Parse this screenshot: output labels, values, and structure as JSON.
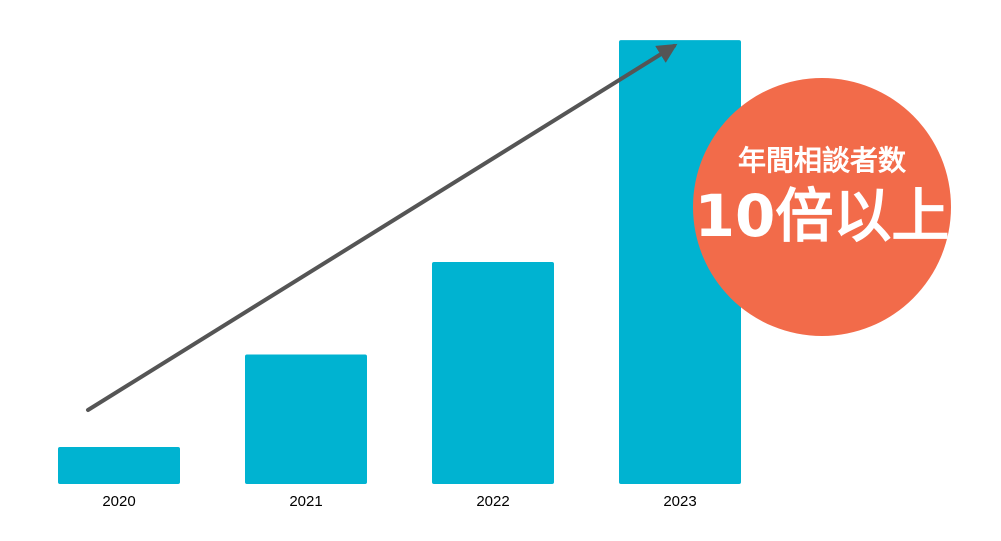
{
  "chart_data": {
    "type": "bar",
    "categories": [
      "2020",
      "2021",
      "2022",
      "2023"
    ],
    "values": [
      1,
      3.5,
      6,
      12
    ],
    "title": "",
    "xlabel": "",
    "ylabel": "",
    "ylim": [
      0,
      12.3
    ],
    "grid": false,
    "legend": "none"
  },
  "annotation": {
    "line1": "年間相談者数",
    "line2": "10倍以上"
  },
  "colors": {
    "bar": "#00b3d1",
    "arrow": "#555555",
    "badge": "#f26b4a",
    "badge_text": "#ffffff"
  }
}
